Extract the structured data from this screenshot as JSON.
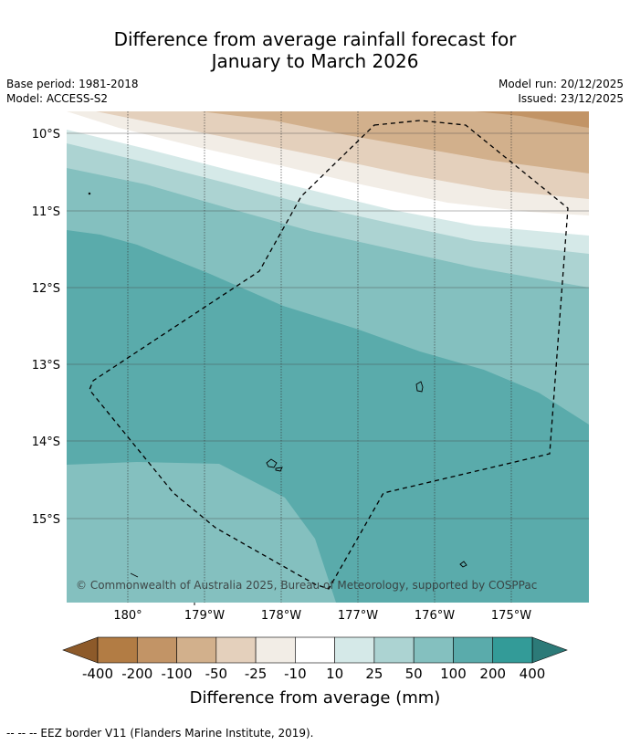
{
  "title_line1": "Difference from average rainfall forecast for",
  "title_line2": "January to March 2026",
  "meta": {
    "base_period": "Base period: 1981-2018",
    "model": "Model: ACCESS-S2",
    "model_run": "Model run: 20/12/2025",
    "issued": "Issued: 23/12/2025"
  },
  "map": {
    "lat_labels": [
      "10°S",
      "11°S",
      "12°S",
      "13°S",
      "14°S",
      "15°S"
    ],
    "lon_labels": [
      "180°",
      "179°W",
      "178°W",
      "177°W",
      "176°W",
      "175°W"
    ],
    "copyright": "© Commonwealth of Australia 2025, Bureau of Meteorology, supported by COSPPac",
    "eez_label": "EEZ border"
  },
  "legend": {
    "tick_labels": [
      "-400",
      "-200",
      "-100",
      "-50",
      "-25",
      "-10",
      "10",
      "25",
      "50",
      "100",
      "200",
      "400"
    ],
    "colors": [
      "#b27c44",
      "#c29466",
      "#d2b08c",
      "#e4d0bc",
      "#f2ede6",
      "#ffffff",
      "#d5e9e8",
      "#acd3d2",
      "#84c0bf",
      "#5aabab",
      "#339b98"
    ],
    "under_color": "#8d5a2a",
    "over_color": "#2c7a78",
    "axis_label": "Difference from average (mm)"
  },
  "footnote": "--  --  -- EEZ border V11 (Flanders Marine Institute, 2019)."
}
